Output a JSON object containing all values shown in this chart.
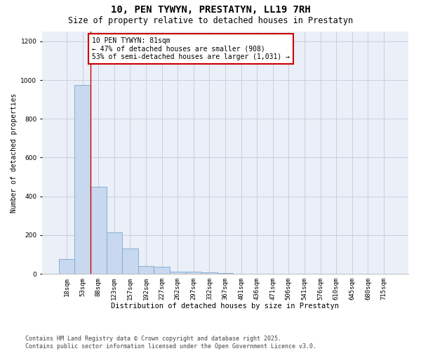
{
  "title": "10, PEN TYWYN, PRESTATYN, LL19 7RH",
  "subtitle": "Size of property relative to detached houses in Prestatyn",
  "xlabel": "Distribution of detached houses by size in Prestatyn",
  "ylabel": "Number of detached properties",
  "categories": [
    "18sqm",
    "53sqm",
    "88sqm",
    "123sqm",
    "157sqm",
    "192sqm",
    "227sqm",
    "262sqm",
    "297sqm",
    "332sqm",
    "367sqm",
    "401sqm",
    "436sqm",
    "471sqm",
    "506sqm",
    "541sqm",
    "576sqm",
    "610sqm",
    "645sqm",
    "680sqm",
    "715sqm"
  ],
  "values": [
    75,
    975,
    450,
    215,
    130,
    40,
    35,
    12,
    12,
    8,
    2,
    0,
    0,
    0,
    0,
    0,
    0,
    0,
    0,
    0,
    0
  ],
  "bar_color": "#c8d8ee",
  "bar_edge_color": "#7aaad0",
  "bar_edge_width": 0.6,
  "grid_color": "#c8d0e0",
  "background_color": "#eaeff8",
  "annotation_line1": "10 PEN TYWYN: 81sqm",
  "annotation_line2": "← 47% of detached houses are smaller (908)",
  "annotation_line3": "53% of semi-detached houses are larger (1,031) →",
  "annotation_box_color": "#cc0000",
  "vline_x": 1.5,
  "vline_color": "#cc0000",
  "ylim": [
    0,
    1250
  ],
  "yticks": [
    0,
    200,
    400,
    600,
    800,
    1000,
    1200
  ],
  "footnote": "Contains HM Land Registry data © Crown copyright and database right 2025.\nContains public sector information licensed under the Open Government Licence v3.0.",
  "title_fontsize": 10,
  "subtitle_fontsize": 8.5,
  "annotation_fontsize": 7,
  "tick_fontsize": 6.5,
  "xlabel_fontsize": 7.5,
  "ylabel_fontsize": 7,
  "footer_fontsize": 6
}
